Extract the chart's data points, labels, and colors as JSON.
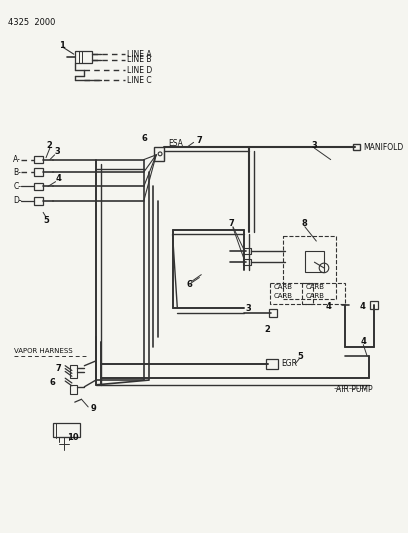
{
  "title": "4325  2000",
  "background_color": "#f5f5f0",
  "line_color": "#333333",
  "text_color": "#111111",
  "fig_width": 4.08,
  "fig_height": 5.33,
  "dpi": 100,
  "labels": {
    "manifold": "MANIFOLD",
    "esa": "ESA",
    "vapor_harness": "VAPOR HARNESS",
    "egr": "EGR",
    "air_pump": "AIR PUMP",
    "line_a": "LINE A",
    "line_b": "LINE B",
    "line_c": "LINE C",
    "line_d": "LINE D"
  }
}
